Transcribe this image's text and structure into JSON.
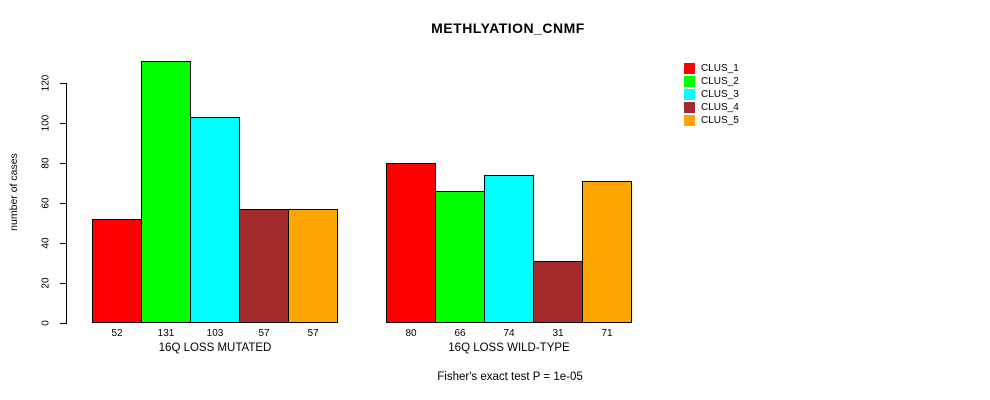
{
  "title": "METHLYATION_CNMF",
  "footer": "Fisher's exact test P = 1e-05",
  "chart_data": {
    "type": "bar",
    "title": "METHLYATION_CNMF",
    "xlabel": "",
    "ylabel": "number of cases",
    "ylim": [
      0,
      131
    ],
    "yticks": [
      0,
      20,
      40,
      60,
      80,
      100,
      120
    ],
    "grid": false,
    "legend_position": "right",
    "categories": [
      "16Q LOSS MUTATED",
      "16Q LOSS WILD-TYPE"
    ],
    "series": [
      {
        "name": "CLUS_1",
        "color": "#ff0000",
        "values": [
          52,
          80
        ]
      },
      {
        "name": "CLUS_2",
        "color": "#00ff00",
        "values": [
          131,
          66
        ]
      },
      {
        "name": "CLUS_3",
        "color": "#00ffff",
        "values": [
          103,
          74
        ]
      },
      {
        "name": "CLUS_4",
        "color": "#a52a2a",
        "values": [
          57,
          31
        ]
      },
      {
        "name": "CLUS_5",
        "color": "#ffa500",
        "values": [
          57,
          71
        ]
      }
    ],
    "groups": [
      {
        "label": "16Q LOSS MUTATED",
        "values": [
          52,
          131,
          103,
          57,
          57
        ]
      },
      {
        "label": "16Q LOSS WILD-TYPE",
        "values": [
          80,
          66,
          74,
          31,
          71
        ]
      }
    ],
    "bar_border_color": "#000000",
    "annotation": "Fisher's exact test P = 1e-05"
  }
}
